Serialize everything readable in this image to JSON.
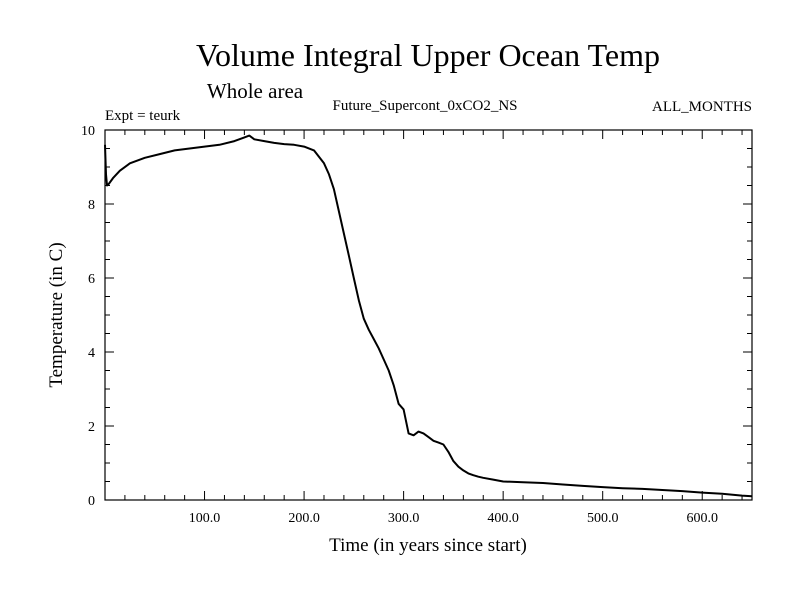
{
  "chart_data": {
    "type": "line",
    "title": "Volume Integral Upper Ocean Temp",
    "subtitle": "Whole area",
    "expt_label": "Expt = teurk",
    "run_label": "Future_Supercont_0xCO2_NS",
    "months_label": "ALL_MONTHS",
    "xlabel": "Time (in years since start)",
    "ylabel": "Temperature (in C)",
    "xlim": [
      0,
      650
    ],
    "ylim": [
      0,
      10
    ],
    "xticks": [
      100,
      200,
      300,
      400,
      500,
      600
    ],
    "xtick_labels": [
      "100.0",
      "200.0",
      "300.0",
      "400.0",
      "500.0",
      "600.0"
    ],
    "yticks": [
      0,
      2,
      4,
      6,
      8,
      10
    ],
    "ytick_labels": [
      "0",
      "2",
      "4",
      "6",
      "8",
      "10"
    ],
    "grid": false,
    "series": [
      {
        "x": [
          0,
          1,
          2,
          4,
          8,
          15,
          25,
          40,
          55,
          70,
          85,
          100,
          115,
          130,
          140,
          145,
          150,
          160,
          170,
          180,
          190,
          200,
          210,
          220,
          225,
          230,
          235,
          240,
          245,
          250,
          255,
          260,
          265,
          270,
          275,
          280,
          285,
          290,
          295,
          300,
          305,
          310,
          315,
          320,
          325,
          330,
          335,
          340,
          345,
          350,
          355,
          360,
          365,
          370,
          375,
          380,
          390,
          400,
          420,
          440,
          460,
          480,
          500,
          520,
          540,
          560,
          580,
          600,
          620,
          640,
          650
        ],
        "y": [
          9.6,
          8.8,
          8.5,
          8.55,
          8.7,
          8.9,
          9.1,
          9.25,
          9.35,
          9.45,
          9.5,
          9.55,
          9.6,
          9.7,
          9.8,
          9.85,
          9.75,
          9.7,
          9.65,
          9.62,
          9.6,
          9.55,
          9.45,
          9.1,
          8.8,
          8.4,
          7.8,
          7.2,
          6.6,
          6.0,
          5.4,
          4.9,
          4.6,
          4.35,
          4.1,
          3.8,
          3.5,
          3.1,
          2.6,
          2.45,
          1.8,
          1.75,
          1.85,
          1.8,
          1.7,
          1.6,
          1.55,
          1.5,
          1.3,
          1.05,
          0.9,
          0.8,
          0.72,
          0.67,
          0.63,
          0.6,
          0.55,
          0.5,
          0.48,
          0.46,
          0.42,
          0.38,
          0.35,
          0.32,
          0.3,
          0.27,
          0.24,
          0.2,
          0.17,
          0.12,
          0.1
        ]
      }
    ]
  }
}
